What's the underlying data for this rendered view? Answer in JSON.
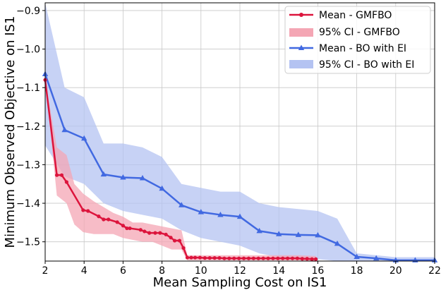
{
  "chart_data": {
    "type": "line",
    "title": "",
    "xlabel": "Mean Sampling Cost on IS1",
    "ylabel": "Minimum Observed Objective on IS1",
    "xlim": [
      2,
      22
    ],
    "ylim": [
      -1.55,
      -0.88
    ],
    "grid": true,
    "legend_position": "top-right",
    "x_ticks": [
      2,
      4,
      6,
      8,
      10,
      12,
      14,
      16,
      18,
      20,
      22
    ],
    "y_ticks": [
      -1.5,
      -1.4,
      -1.3,
      -1.2,
      -1.1,
      -1.0,
      -0.9
    ],
    "x_tick_labels": [
      "2",
      "4",
      "6",
      "8",
      "10",
      "12",
      "14",
      "16",
      "18",
      "20",
      "22"
    ],
    "y_tick_labels": [
      "−1.5",
      "−1.4",
      "−1.3",
      "−1.2",
      "−1.1",
      "−1.0",
      "−0.9"
    ],
    "series": [
      {
        "name": "Mean - GMFBO",
        "color": "#dc143c",
        "marker": "circle",
        "x": [
          2.0,
          2.6,
          2.85,
          3.1,
          3.95,
          4.2,
          4.75,
          5.0,
          5.25,
          5.7,
          6.0,
          6.2,
          6.35,
          6.9,
          7.1,
          7.35,
          7.65,
          7.9,
          8.2,
          8.45,
          8.65,
          8.9,
          9.1,
          9.3,
          9.5,
          9.7,
          9.95,
          10.2,
          10.45,
          10.7,
          10.95,
          11.2,
          11.45,
          11.7,
          11.95,
          12.2,
          12.45,
          12.7,
          12.95,
          13.2,
          13.45,
          13.7,
          13.95,
          14.2,
          14.45,
          14.7,
          14.95,
          15.2,
          15.45,
          15.7,
          15.9
        ],
        "y": [
          -1.08,
          -1.327,
          -1.327,
          -1.345,
          -1.418,
          -1.42,
          -1.434,
          -1.442,
          -1.442,
          -1.449,
          -1.458,
          -1.465,
          -1.465,
          -1.469,
          -1.473,
          -1.477,
          -1.477,
          -1.477,
          -1.481,
          -1.489,
          -1.497,
          -1.497,
          -1.516,
          -1.541,
          -1.541,
          -1.541,
          -1.541,
          -1.542,
          -1.542,
          -1.542,
          -1.542,
          -1.543,
          -1.543,
          -1.543,
          -1.543,
          -1.543,
          -1.543,
          -1.543,
          -1.543,
          -1.543,
          -1.543,
          -1.543,
          -1.543,
          -1.543,
          -1.543,
          -1.543,
          -1.543,
          -1.544,
          -1.544,
          -1.545,
          -1.545
        ]
      },
      {
        "name": "Mean - BO with EI",
        "color": "#4169e1",
        "marker": "triangle",
        "x": [
          2,
          3,
          4,
          5,
          6,
          7,
          8,
          9,
          10,
          11,
          12,
          13,
          14,
          15,
          16,
          17,
          18,
          19,
          20,
          21,
          22
        ],
        "y": [
          -1.065,
          -1.21,
          -1.232,
          -1.325,
          -1.333,
          -1.335,
          -1.362,
          -1.405,
          -1.423,
          -1.43,
          -1.435,
          -1.472,
          -1.48,
          -1.482,
          -1.483,
          -1.505,
          -1.539,
          -1.543,
          -1.548,
          -1.548,
          -1.548
        ]
      }
    ],
    "confidence_bands": [
      {
        "name": "95% CI - GMFBO",
        "color": "#f4a6b4",
        "x": [
          2.0,
          2.6,
          3.1,
          3.5,
          3.95,
          4.5,
          5.0,
          5.5,
          6.0,
          6.5,
          7.0,
          7.5,
          8.0,
          8.5,
          9.0,
          9.3,
          9.6,
          10,
          11,
          12,
          13,
          14,
          15,
          15.9
        ],
        "upper": [
          -1.08,
          -1.255,
          -1.275,
          -1.35,
          -1.375,
          -1.395,
          -1.41,
          -1.425,
          -1.435,
          -1.45,
          -1.45,
          -1.455,
          -1.46,
          -1.465,
          -1.47,
          -1.535,
          -1.535,
          -1.535,
          -1.535,
          -1.535,
          -1.535,
          -1.535,
          -1.535,
          -1.537
        ],
        "lower": [
          -1.08,
          -1.38,
          -1.4,
          -1.455,
          -1.475,
          -1.48,
          -1.48,
          -1.48,
          -1.49,
          -1.495,
          -1.5,
          -1.5,
          -1.51,
          -1.52,
          -1.52,
          -1.548,
          -1.548,
          -1.548,
          -1.548,
          -1.548,
          -1.548,
          -1.548,
          -1.548,
          -1.552
        ]
      },
      {
        "name": "95% CI - BO with EI",
        "color": "#b4c3f2",
        "x": [
          2,
          3,
          4,
          5,
          6,
          7,
          8,
          9,
          10,
          11,
          12,
          13,
          14,
          15,
          16,
          17,
          18,
          19,
          20,
          21,
          22
        ],
        "upper": [
          -0.88,
          -1.1,
          -1.125,
          -1.245,
          -1.245,
          -1.255,
          -1.28,
          -1.35,
          -1.36,
          -1.37,
          -1.37,
          -1.4,
          -1.41,
          -1.415,
          -1.42,
          -1.44,
          -1.53,
          -1.535,
          -1.54,
          -1.54,
          -1.54
        ],
        "lower": [
          -1.25,
          -1.33,
          -1.35,
          -1.4,
          -1.42,
          -1.43,
          -1.44,
          -1.47,
          -1.49,
          -1.5,
          -1.51,
          -1.53,
          -1.54,
          -1.545,
          -1.545,
          -1.55,
          -1.55,
          -1.55,
          -1.55,
          -1.55,
          -1.55
        ]
      }
    ],
    "legend": [
      {
        "label": "Mean - GMFBO",
        "kind": "line",
        "color": "#dc143c",
        "marker": "circle"
      },
      {
        "label": "95% CI - GMFBO",
        "kind": "patch",
        "color": "#f4a6b4"
      },
      {
        "label": "Mean - BO with EI",
        "kind": "line",
        "color": "#4169e1",
        "marker": "triangle"
      },
      {
        "label": "95% CI - BO with EI",
        "kind": "patch",
        "color": "#b4c3f2"
      }
    ]
  }
}
